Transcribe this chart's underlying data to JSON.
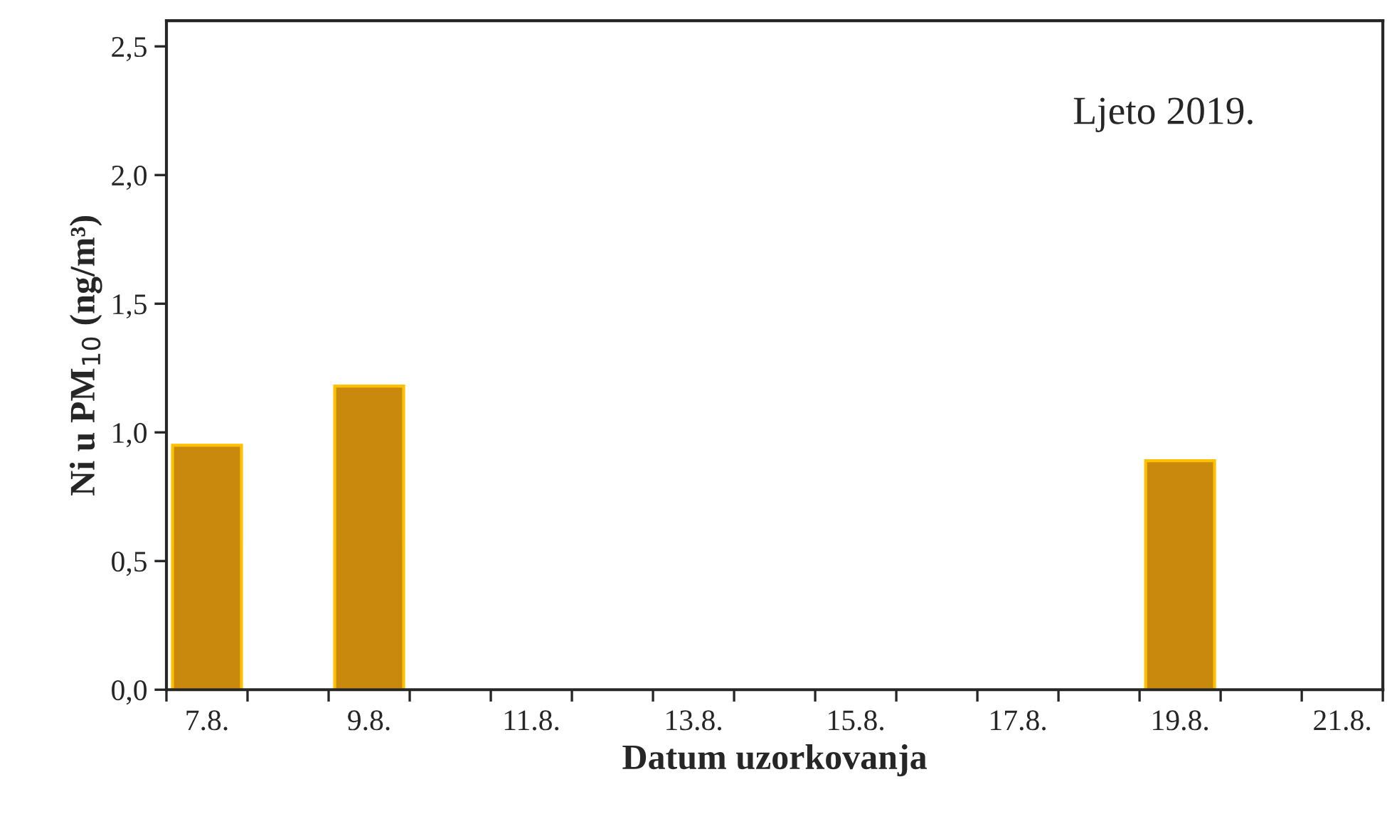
{
  "chart_data": {
    "type": "bar",
    "xlabel": "Datum uzorkovanja",
    "ylabel": "Ni u PM$_{10}$ (ng/m³)",
    "categories": [
      "7.8.",
      null,
      "9.8.",
      null,
      "11.8.",
      null,
      "13.8.",
      null,
      "15.8.",
      null,
      "17.8.",
      null,
      "19.8.",
      null,
      "21.8."
    ],
    "values": [
      0.95,
      null,
      1.18,
      null,
      null,
      null,
      null,
      null,
      null,
      null,
      null,
      null,
      0.89,
      null,
      null
    ],
    "color": "#c8890c",
    "ylim": [
      0,
      2.6
    ],
    "yticks": [
      {
        "value": 0,
        "label": "0,0"
      },
      {
        "value": 0.5,
        "label": "0,5"
      },
      {
        "value": 1.0,
        "label": "1,0"
      },
      {
        "value": 1.5,
        "label": "1,5"
      },
      {
        "value": 2.0,
        "label": "2,0"
      },
      {
        "value": 2.5,
        "label": "2,5"
      }
    ],
    "annotations": [
      "Ljeto 2019."
    ],
    "grid": false,
    "legend": false
  }
}
